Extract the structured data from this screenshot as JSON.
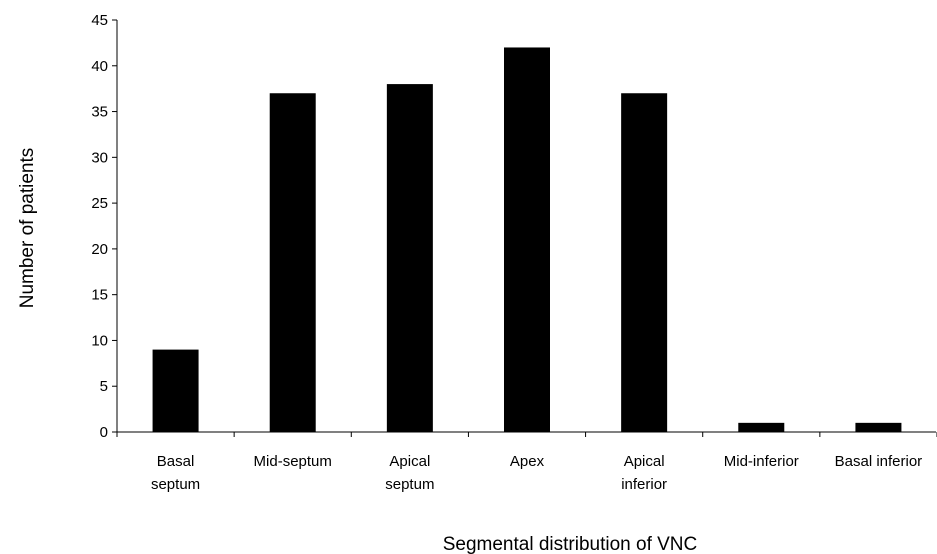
{
  "chart_data": {
    "type": "bar",
    "title": "",
    "xlabel": "Segmental distribution of VNC",
    "ylabel": "Number of patients",
    "categories": [
      [
        "Basal",
        "septum"
      ],
      [
        "Mid-septum"
      ],
      [
        "Apical",
        "septum"
      ],
      [
        "Apex"
      ],
      [
        "Apical",
        "inferior"
      ],
      [
        "Mid-inferior"
      ],
      [
        "Basal inferior"
      ]
    ],
    "values": [
      9,
      37,
      38,
      42,
      37,
      1,
      1
    ],
    "ylim": [
      0,
      45
    ],
    "yticks": [
      0,
      5,
      10,
      15,
      20,
      25,
      30,
      35,
      40,
      45
    ],
    "grid": false,
    "legend": "none",
    "bar_color": "#000000",
    "axis_color": "#000000"
  }
}
